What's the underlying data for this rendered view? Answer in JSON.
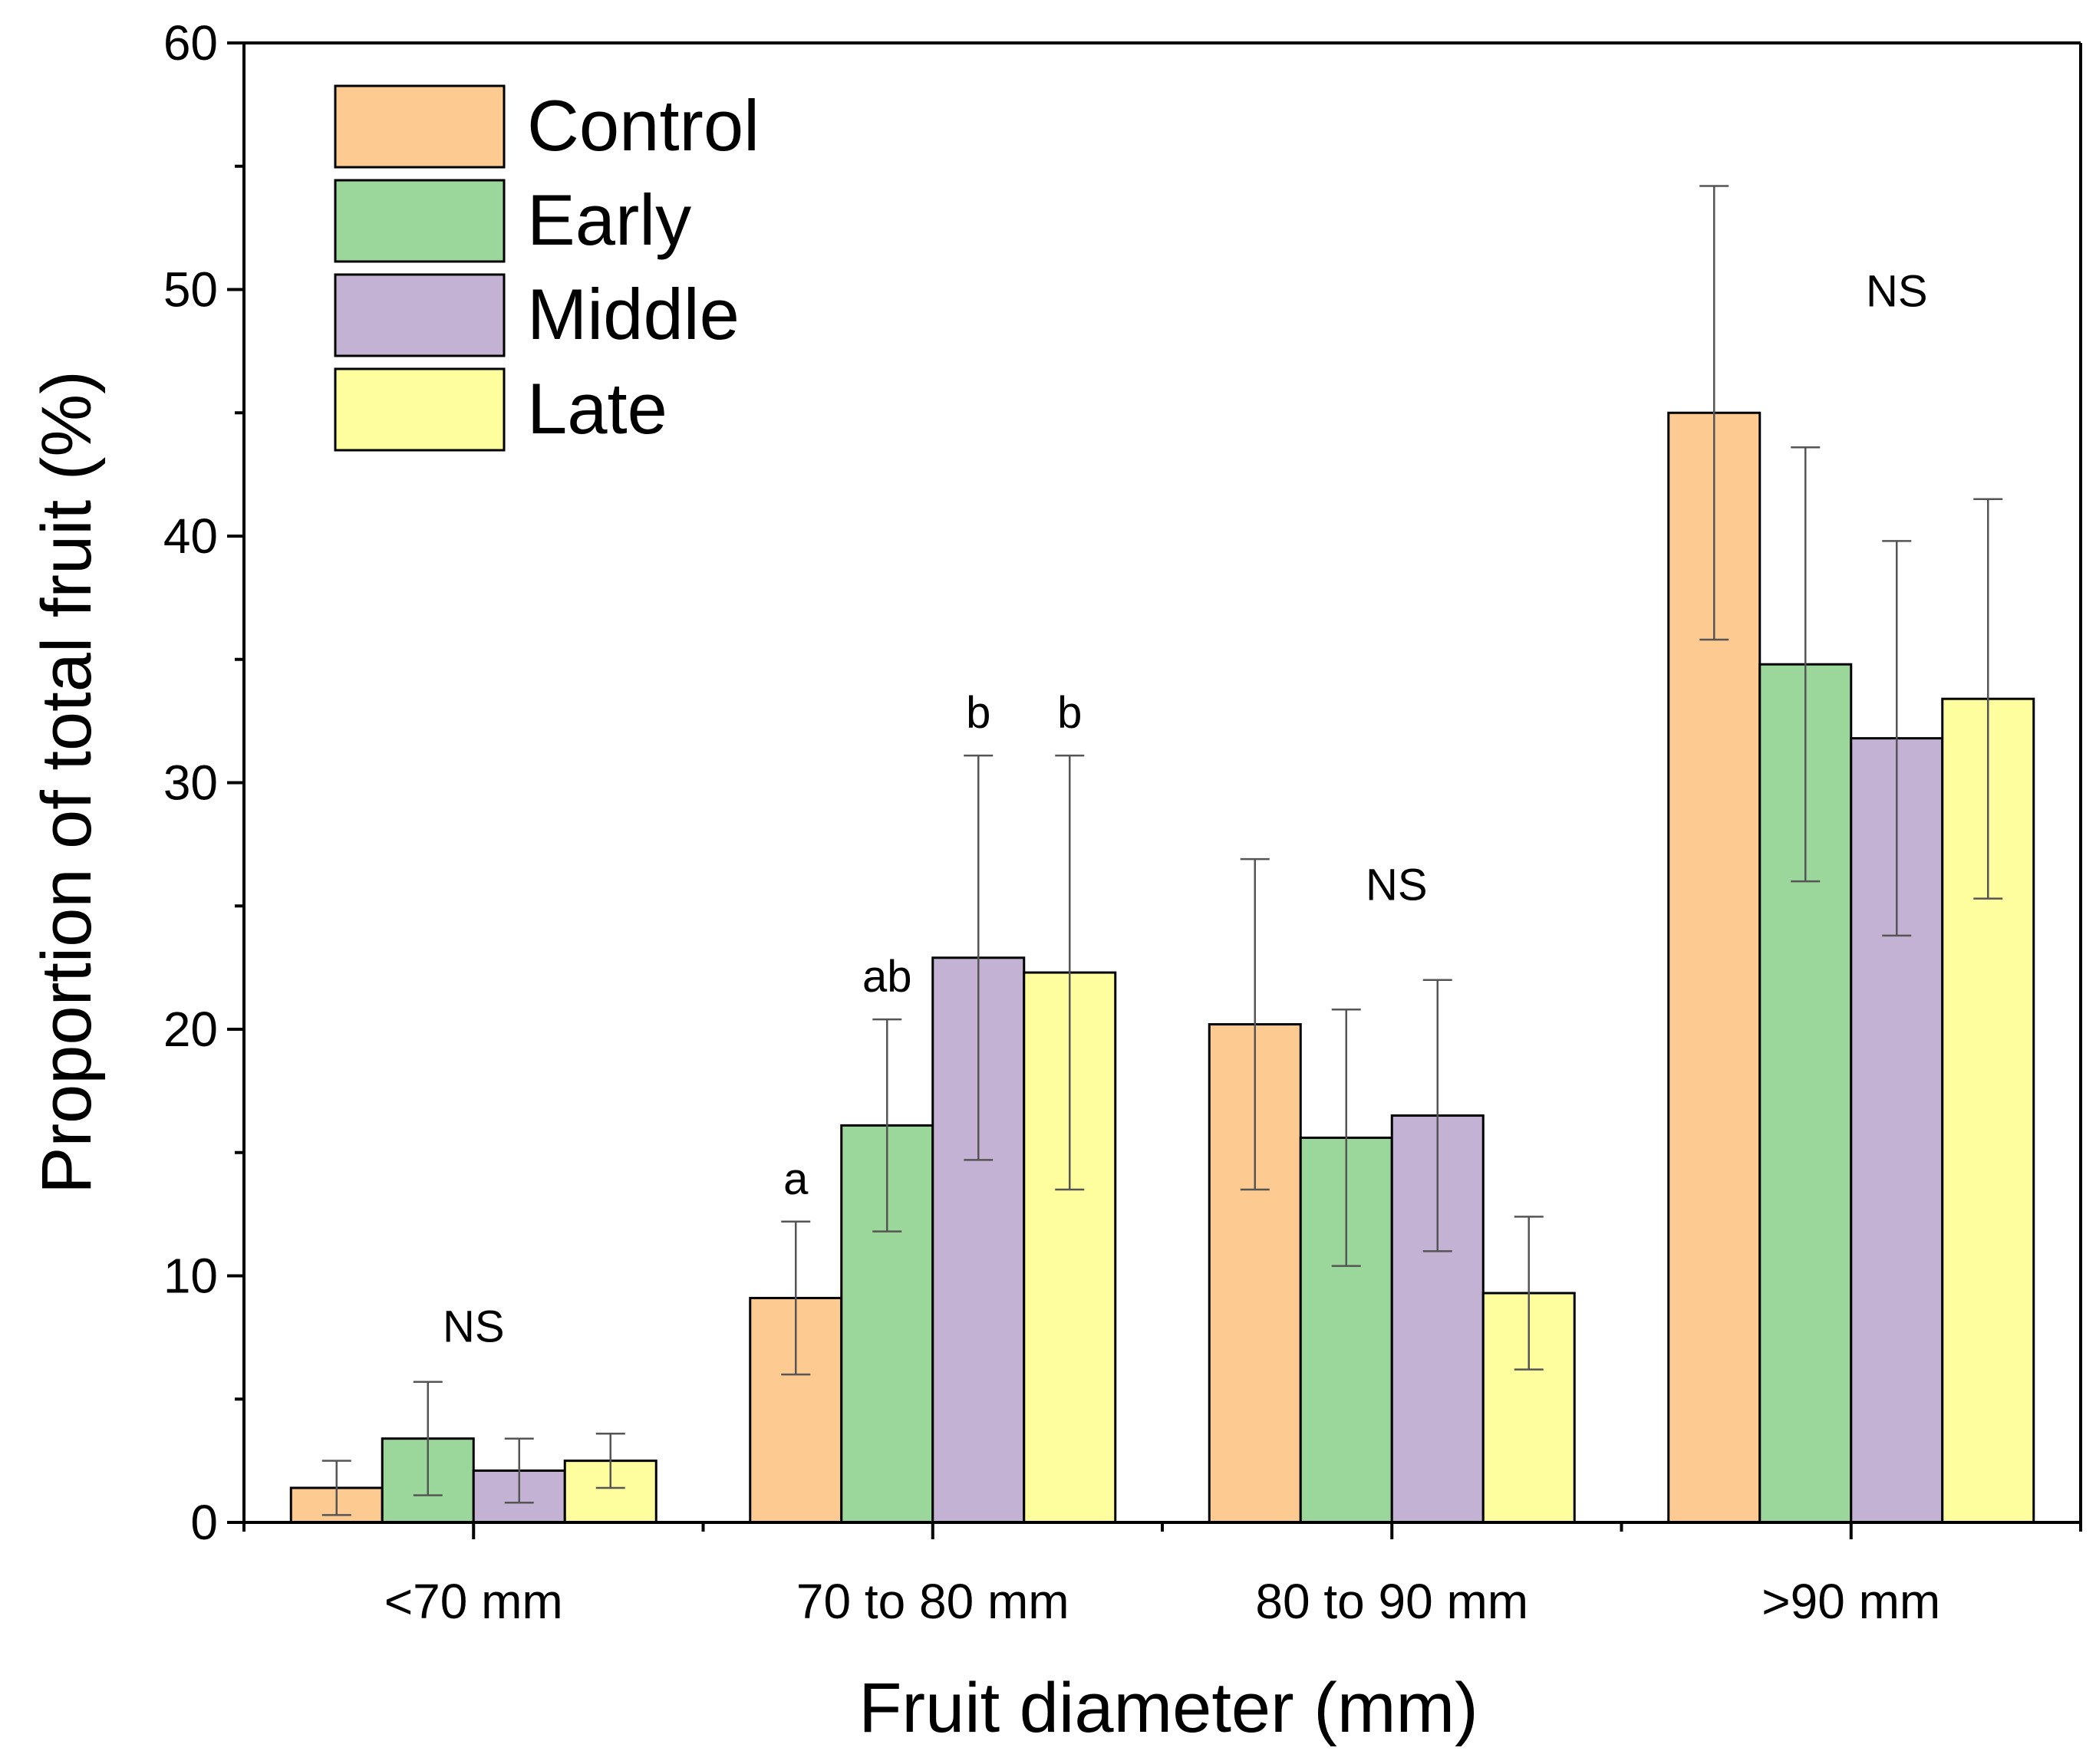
{
  "chart_data": {
    "type": "bar",
    "xlabel": "Fruit diameter (mm)",
    "ylabel": "Proportion of total fruit (%)",
    "ylim": [
      0,
      60
    ],
    "yticks": [
      0,
      10,
      20,
      30,
      40,
      50,
      60
    ],
    "categories": [
      "<70 mm",
      "70 to 80 mm",
      "80 to 90 mm",
      ">90 mm"
    ],
    "legend_position": "top-left",
    "series": [
      {
        "name": "Control",
        "color": "#FDCB91",
        "values": [
          1.4,
          9.1,
          20.2,
          45.0
        ],
        "err_low": [
          0.3,
          6.0,
          13.5,
          35.8
        ],
        "err_high": [
          2.5,
          12.2,
          26.9,
          54.2
        ]
      },
      {
        "name": "Early",
        "color": "#9BD69A",
        "values": [
          3.4,
          16.1,
          15.6,
          34.8
        ],
        "err_low": [
          1.1,
          11.8,
          10.4,
          26.0
        ],
        "err_high": [
          5.7,
          20.4,
          20.8,
          43.6
        ]
      },
      {
        "name": "Middle",
        "color": "#C4B2D5",
        "values": [
          2.1,
          22.9,
          16.5,
          31.8
        ],
        "err_low": [
          0.8,
          14.7,
          11.0,
          23.8
        ],
        "err_high": [
          3.4,
          31.1,
          22.0,
          39.8
        ]
      },
      {
        "name": "Late",
        "color": "#FEFE9E",
        "values": [
          2.5,
          22.3,
          9.3,
          33.4
        ],
        "err_low": [
          1.4,
          13.5,
          6.2,
          25.3
        ],
        "err_high": [
          3.6,
          31.1,
          12.4,
          41.5
        ]
      }
    ],
    "group_annotations": [
      {
        "category": "<70 mm",
        "text": "NS"
      },
      {
        "category": "80 to 90 mm",
        "text": "NS"
      },
      {
        "category": ">90 mm",
        "text": "NS"
      }
    ],
    "bar_annotations": [
      {
        "category": "70 to 80 mm",
        "series": "Control",
        "text": "a"
      },
      {
        "category": "70 to 80 mm",
        "series": "Early",
        "text": "ab"
      },
      {
        "category": "70 to 80 mm",
        "series": "Middle",
        "text": "b"
      },
      {
        "category": "70 to 80 mm",
        "series": "Late",
        "text": "b"
      }
    ]
  }
}
